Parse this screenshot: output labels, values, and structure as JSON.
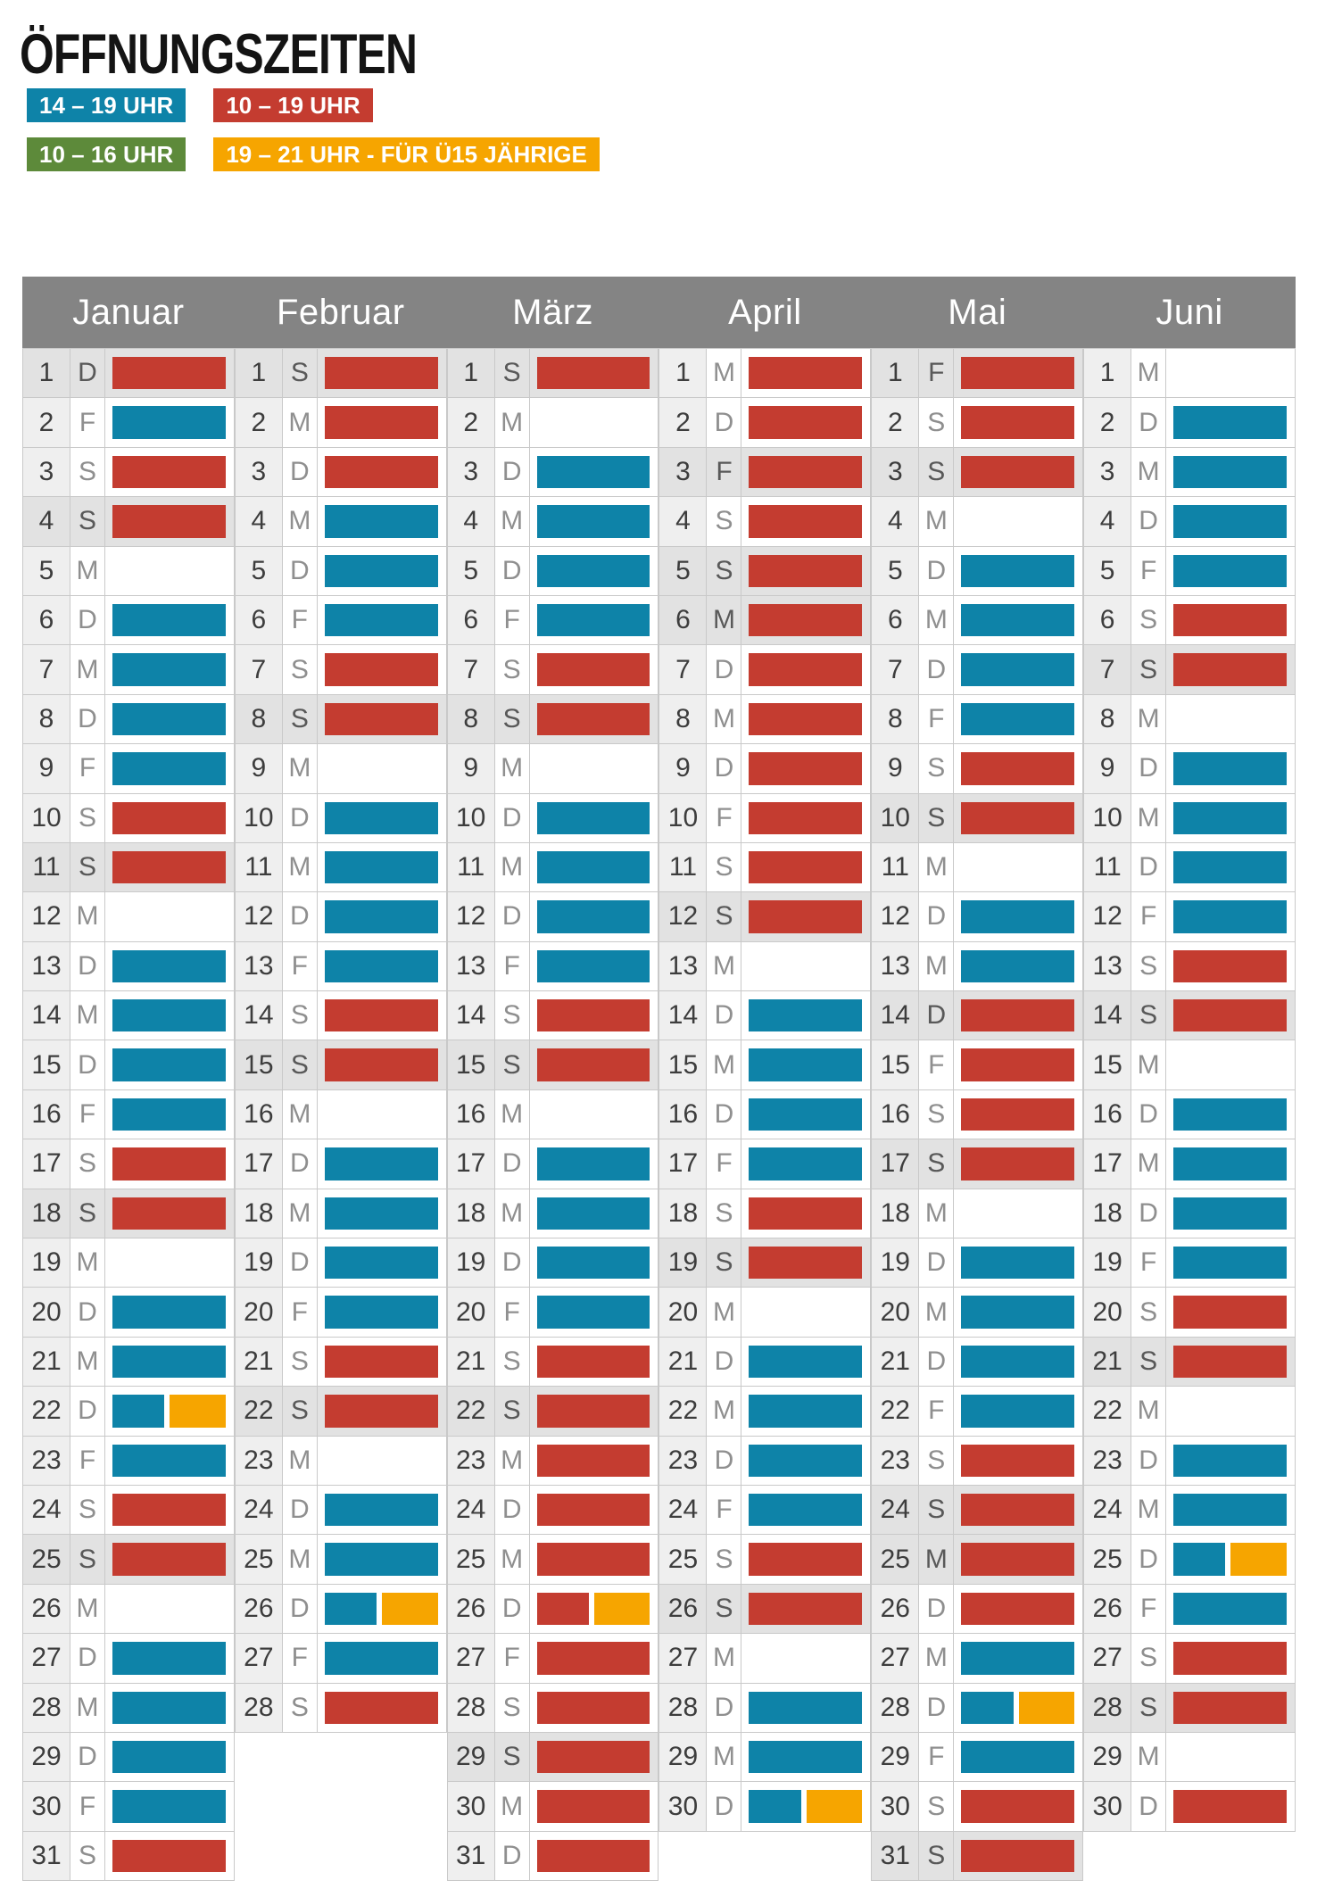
{
  "title": "ÖFFNUNGSZEITEN",
  "colors": {
    "blue": "#0e83a8",
    "red": "#c43c30",
    "green": "#5d8a3a",
    "orange": "#f6a500",
    "header": "#848484"
  },
  "legend": [
    {
      "k": "blue",
      "label": "14 – 19 UHR"
    },
    {
      "k": "red",
      "label": "10 – 19 UHR"
    },
    {
      "k": "green",
      "label": "10 – 16 UHR"
    },
    {
      "k": "orange",
      "label": "19 – 21 UHR - FÜR Ü15 JÄHRIGE"
    }
  ],
  "months": [
    {
      "name": "Januar",
      "key": "januar",
      "days": [
        {
          "n": 1,
          "w": "D",
          "b": "red",
          "s": 1
        },
        {
          "n": 2,
          "w": "F",
          "b": "blue",
          "s": 0
        },
        {
          "n": 3,
          "w": "S",
          "b": "red",
          "s": 0
        },
        {
          "n": 4,
          "w": "S",
          "b": "red",
          "s": 1
        },
        {
          "n": 5,
          "w": "M",
          "b": "",
          "s": 0
        },
        {
          "n": 6,
          "w": "D",
          "b": "blue",
          "s": 0
        },
        {
          "n": 7,
          "w": "M",
          "b": "blue",
          "s": 0
        },
        {
          "n": 8,
          "w": "D",
          "b": "blue",
          "s": 0
        },
        {
          "n": 9,
          "w": "F",
          "b": "blue",
          "s": 0
        },
        {
          "n": 10,
          "w": "S",
          "b": "red",
          "s": 0
        },
        {
          "n": 11,
          "w": "S",
          "b": "red",
          "s": 1
        },
        {
          "n": 12,
          "w": "M",
          "b": "",
          "s": 0
        },
        {
          "n": 13,
          "w": "D",
          "b": "blue",
          "s": 0
        },
        {
          "n": 14,
          "w": "M",
          "b": "blue",
          "s": 0
        },
        {
          "n": 15,
          "w": "D",
          "b": "blue",
          "s": 0
        },
        {
          "n": 16,
          "w": "F",
          "b": "blue",
          "s": 0
        },
        {
          "n": 17,
          "w": "S",
          "b": "red",
          "s": 0
        },
        {
          "n": 18,
          "w": "S",
          "b": "red",
          "s": 1
        },
        {
          "n": 19,
          "w": "M",
          "b": "",
          "s": 0
        },
        {
          "n": 20,
          "w": "D",
          "b": "blue",
          "s": 0
        },
        {
          "n": 21,
          "w": "M",
          "b": "blue",
          "s": 0
        },
        {
          "n": 22,
          "w": "D",
          "b": "blue orange",
          "s": 0
        },
        {
          "n": 23,
          "w": "F",
          "b": "blue",
          "s": 0
        },
        {
          "n": 24,
          "w": "S",
          "b": "red",
          "s": 0
        },
        {
          "n": 25,
          "w": "S",
          "b": "red",
          "s": 1
        },
        {
          "n": 26,
          "w": "M",
          "b": "",
          "s": 0
        },
        {
          "n": 27,
          "w": "D",
          "b": "blue",
          "s": 0
        },
        {
          "n": 28,
          "w": "M",
          "b": "blue",
          "s": 0
        },
        {
          "n": 29,
          "w": "D",
          "b": "blue",
          "s": 0
        },
        {
          "n": 30,
          "w": "F",
          "b": "blue",
          "s": 0
        },
        {
          "n": 31,
          "w": "S",
          "b": "red",
          "s": 0
        }
      ]
    },
    {
      "name": "Februar",
      "key": "februar",
      "days": [
        {
          "n": 1,
          "w": "S",
          "b": "red",
          "s": 1
        },
        {
          "n": 2,
          "w": "M",
          "b": "red",
          "s": 0
        },
        {
          "n": 3,
          "w": "D",
          "b": "red",
          "s": 0
        },
        {
          "n": 4,
          "w": "M",
          "b": "blue",
          "s": 0
        },
        {
          "n": 5,
          "w": "D",
          "b": "blue",
          "s": 0
        },
        {
          "n": 6,
          "w": "F",
          "b": "blue",
          "s": 0
        },
        {
          "n": 7,
          "w": "S",
          "b": "red",
          "s": 0
        },
        {
          "n": 8,
          "w": "S",
          "b": "red",
          "s": 1
        },
        {
          "n": 9,
          "w": "M",
          "b": "",
          "s": 0
        },
        {
          "n": 10,
          "w": "D",
          "b": "blue",
          "s": 0
        },
        {
          "n": 11,
          "w": "M",
          "b": "blue",
          "s": 0
        },
        {
          "n": 12,
          "w": "D",
          "b": "blue",
          "s": 0
        },
        {
          "n": 13,
          "w": "F",
          "b": "blue",
          "s": 0
        },
        {
          "n": 14,
          "w": "S",
          "b": "red",
          "s": 0
        },
        {
          "n": 15,
          "w": "S",
          "b": "red",
          "s": 1
        },
        {
          "n": 16,
          "w": "M",
          "b": "",
          "s": 0
        },
        {
          "n": 17,
          "w": "D",
          "b": "blue",
          "s": 0
        },
        {
          "n": 18,
          "w": "M",
          "b": "blue",
          "s": 0
        },
        {
          "n": 19,
          "w": "D",
          "b": "blue",
          "s": 0
        },
        {
          "n": 20,
          "w": "F",
          "b": "blue",
          "s": 0
        },
        {
          "n": 21,
          "w": "S",
          "b": "red",
          "s": 0
        },
        {
          "n": 22,
          "w": "S",
          "b": "red",
          "s": 1
        },
        {
          "n": 23,
          "w": "M",
          "b": "",
          "s": 0
        },
        {
          "n": 24,
          "w": "D",
          "b": "blue",
          "s": 0
        },
        {
          "n": 25,
          "w": "M",
          "b": "blue",
          "s": 0
        },
        {
          "n": 26,
          "w": "D",
          "b": "blue orange",
          "s": 0
        },
        {
          "n": 27,
          "w": "F",
          "b": "blue",
          "s": 0
        },
        {
          "n": 28,
          "w": "S",
          "b": "red",
          "s": 0
        }
      ]
    },
    {
      "name": "März",
      "key": "maerz",
      "days": [
        {
          "n": 1,
          "w": "S",
          "b": "red",
          "s": 1
        },
        {
          "n": 2,
          "w": "M",
          "b": "",
          "s": 0
        },
        {
          "n": 3,
          "w": "D",
          "b": "blue",
          "s": 0
        },
        {
          "n": 4,
          "w": "M",
          "b": "blue",
          "s": 0
        },
        {
          "n": 5,
          "w": "D",
          "b": "blue",
          "s": 0
        },
        {
          "n": 6,
          "w": "F",
          "b": "blue",
          "s": 0
        },
        {
          "n": 7,
          "w": "S",
          "b": "red",
          "s": 0
        },
        {
          "n": 8,
          "w": "S",
          "b": "red",
          "s": 1
        },
        {
          "n": 9,
          "w": "M",
          "b": "",
          "s": 0
        },
        {
          "n": 10,
          "w": "D",
          "b": "blue",
          "s": 0
        },
        {
          "n": 11,
          "w": "M",
          "b": "blue",
          "s": 0
        },
        {
          "n": 12,
          "w": "D",
          "b": "blue",
          "s": 0
        },
        {
          "n": 13,
          "w": "F",
          "b": "blue",
          "s": 0
        },
        {
          "n": 14,
          "w": "S",
          "b": "red",
          "s": 0
        },
        {
          "n": 15,
          "w": "S",
          "b": "red",
          "s": 1
        },
        {
          "n": 16,
          "w": "M",
          "b": "",
          "s": 0
        },
        {
          "n": 17,
          "w": "D",
          "b": "blue",
          "s": 0
        },
        {
          "n": 18,
          "w": "M",
          "b": "blue",
          "s": 0
        },
        {
          "n": 19,
          "w": "D",
          "b": "blue",
          "s": 0
        },
        {
          "n": 20,
          "w": "F",
          "b": "blue",
          "s": 0
        },
        {
          "n": 21,
          "w": "S",
          "b": "red",
          "s": 0
        },
        {
          "n": 22,
          "w": "S",
          "b": "red",
          "s": 1
        },
        {
          "n": 23,
          "w": "M",
          "b": "red",
          "s": 0
        },
        {
          "n": 24,
          "w": "D",
          "b": "red",
          "s": 0
        },
        {
          "n": 25,
          "w": "M",
          "b": "red",
          "s": 0
        },
        {
          "n": 26,
          "w": "D",
          "b": "red orange",
          "s": 0
        },
        {
          "n": 27,
          "w": "F",
          "b": "red",
          "s": 0
        },
        {
          "n": 28,
          "w": "S",
          "b": "red",
          "s": 0
        },
        {
          "n": 29,
          "w": "S",
          "b": "red",
          "s": 1
        },
        {
          "n": 30,
          "w": "M",
          "b": "red",
          "s": 0
        },
        {
          "n": 31,
          "w": "D",
          "b": "red",
          "s": 0
        }
      ]
    },
    {
      "name": "April",
      "key": "april",
      "days": [
        {
          "n": 1,
          "w": "M",
          "b": "red",
          "s": 0
        },
        {
          "n": 2,
          "w": "D",
          "b": "red",
          "s": 0
        },
        {
          "n": 3,
          "w": "F",
          "b": "red",
          "s": 1
        },
        {
          "n": 4,
          "w": "S",
          "b": "red",
          "s": 0
        },
        {
          "n": 5,
          "w": "S",
          "b": "red",
          "s": 1
        },
        {
          "n": 6,
          "w": "M",
          "b": "red",
          "s": 1
        },
        {
          "n": 7,
          "w": "D",
          "b": "red",
          "s": 0
        },
        {
          "n": 8,
          "w": "M",
          "b": "red",
          "s": 0
        },
        {
          "n": 9,
          "w": "D",
          "b": "red",
          "s": 0
        },
        {
          "n": 10,
          "w": "F",
          "b": "red",
          "s": 0
        },
        {
          "n": 11,
          "w": "S",
          "b": "red",
          "s": 0
        },
        {
          "n": 12,
          "w": "S",
          "b": "red",
          "s": 1
        },
        {
          "n": 13,
          "w": "M",
          "b": "",
          "s": 0
        },
        {
          "n": 14,
          "w": "D",
          "b": "blue",
          "s": 0
        },
        {
          "n": 15,
          "w": "M",
          "b": "blue",
          "s": 0
        },
        {
          "n": 16,
          "w": "D",
          "b": "blue",
          "s": 0
        },
        {
          "n": 17,
          "w": "F",
          "b": "blue",
          "s": 0
        },
        {
          "n": 18,
          "w": "S",
          "b": "red",
          "s": 0
        },
        {
          "n": 19,
          "w": "S",
          "b": "red",
          "s": 1
        },
        {
          "n": 20,
          "w": "M",
          "b": "",
          "s": 0
        },
        {
          "n": 21,
          "w": "D",
          "b": "blue",
          "s": 0
        },
        {
          "n": 22,
          "w": "M",
          "b": "blue",
          "s": 0
        },
        {
          "n": 23,
          "w": "D",
          "b": "blue",
          "s": 0
        },
        {
          "n": 24,
          "w": "F",
          "b": "blue",
          "s": 0
        },
        {
          "n": 25,
          "w": "S",
          "b": "red",
          "s": 0
        },
        {
          "n": 26,
          "w": "S",
          "b": "red",
          "s": 1
        },
        {
          "n": 27,
          "w": "M",
          "b": "",
          "s": 0
        },
        {
          "n": 28,
          "w": "D",
          "b": "blue",
          "s": 0
        },
        {
          "n": 29,
          "w": "M",
          "b": "blue",
          "s": 0
        },
        {
          "n": 30,
          "w": "D",
          "b": "blue orange",
          "s": 0
        }
      ]
    },
    {
      "name": "Mai",
      "key": "mai",
      "days": [
        {
          "n": 1,
          "w": "F",
          "b": "red",
          "s": 1
        },
        {
          "n": 2,
          "w": "S",
          "b": "red",
          "s": 0
        },
        {
          "n": 3,
          "w": "S",
          "b": "red",
          "s": 1
        },
        {
          "n": 4,
          "w": "M",
          "b": "",
          "s": 0
        },
        {
          "n": 5,
          "w": "D",
          "b": "blue",
          "s": 0
        },
        {
          "n": 6,
          "w": "M",
          "b": "blue",
          "s": 0
        },
        {
          "n": 7,
          "w": "D",
          "b": "blue",
          "s": 0
        },
        {
          "n": 8,
          "w": "F",
          "b": "blue",
          "s": 0
        },
        {
          "n": 9,
          "w": "S",
          "b": "red",
          "s": 0
        },
        {
          "n": 10,
          "w": "S",
          "b": "red",
          "s": 1
        },
        {
          "n": 11,
          "w": "M",
          "b": "",
          "s": 0
        },
        {
          "n": 12,
          "w": "D",
          "b": "blue",
          "s": 0
        },
        {
          "n": 13,
          "w": "M",
          "b": "blue",
          "s": 0
        },
        {
          "n": 14,
          "w": "D",
          "b": "red",
          "s": 1
        },
        {
          "n": 15,
          "w": "F",
          "b": "red",
          "s": 0
        },
        {
          "n": 16,
          "w": "S",
          "b": "red",
          "s": 0
        },
        {
          "n": 17,
          "w": "S",
          "b": "red",
          "s": 1
        },
        {
          "n": 18,
          "w": "M",
          "b": "",
          "s": 0
        },
        {
          "n": 19,
          "w": "D",
          "b": "blue",
          "s": 0
        },
        {
          "n": 20,
          "w": "M",
          "b": "blue",
          "s": 0
        },
        {
          "n": 21,
          "w": "D",
          "b": "blue",
          "s": 0
        },
        {
          "n": 22,
          "w": "F",
          "b": "blue",
          "s": 0
        },
        {
          "n": 23,
          "w": "S",
          "b": "red",
          "s": 0
        },
        {
          "n": 24,
          "w": "S",
          "b": "red",
          "s": 1
        },
        {
          "n": 25,
          "w": "M",
          "b": "red",
          "s": 1
        },
        {
          "n": 26,
          "w": "D",
          "b": "red",
          "s": 0
        },
        {
          "n": 27,
          "w": "M",
          "b": "blue",
          "s": 0
        },
        {
          "n": 28,
          "w": "D",
          "b": "blue orange",
          "s": 0
        },
        {
          "n": 29,
          "w": "F",
          "b": "blue",
          "s": 0
        },
        {
          "n": 30,
          "w": "S",
          "b": "red",
          "s": 0
        },
        {
          "n": 31,
          "w": "S",
          "b": "red",
          "s": 1
        }
      ]
    },
    {
      "name": "Juni",
      "key": "juni",
      "days": [
        {
          "n": 1,
          "w": "M",
          "b": "",
          "s": 0
        },
        {
          "n": 2,
          "w": "D",
          "b": "blue",
          "s": 0
        },
        {
          "n": 3,
          "w": "M",
          "b": "blue",
          "s": 0
        },
        {
          "n": 4,
          "w": "D",
          "b": "blue",
          "s": 0
        },
        {
          "n": 5,
          "w": "F",
          "b": "blue",
          "s": 0
        },
        {
          "n": 6,
          "w": "S",
          "b": "red",
          "s": 0
        },
        {
          "n": 7,
          "w": "S",
          "b": "red",
          "s": 1
        },
        {
          "n": 8,
          "w": "M",
          "b": "",
          "s": 0
        },
        {
          "n": 9,
          "w": "D",
          "b": "blue",
          "s": 0
        },
        {
          "n": 10,
          "w": "M",
          "b": "blue",
          "s": 0
        },
        {
          "n": 11,
          "w": "D",
          "b": "blue",
          "s": 0
        },
        {
          "n": 12,
          "w": "F",
          "b": "blue",
          "s": 0
        },
        {
          "n": 13,
          "w": "S",
          "b": "red",
          "s": 0
        },
        {
          "n": 14,
          "w": "S",
          "b": "red",
          "s": 1
        },
        {
          "n": 15,
          "w": "M",
          "b": "",
          "s": 0
        },
        {
          "n": 16,
          "w": "D",
          "b": "blue",
          "s": 0
        },
        {
          "n": 17,
          "w": "M",
          "b": "blue",
          "s": 0
        },
        {
          "n": 18,
          "w": "D",
          "b": "blue",
          "s": 0
        },
        {
          "n": 19,
          "w": "F",
          "b": "blue",
          "s": 0
        },
        {
          "n": 20,
          "w": "S",
          "b": "red",
          "s": 0
        },
        {
          "n": 21,
          "w": "S",
          "b": "red",
          "s": 1
        },
        {
          "n": 22,
          "w": "M",
          "b": "",
          "s": 0
        },
        {
          "n": 23,
          "w": "D",
          "b": "blue",
          "s": 0
        },
        {
          "n": 24,
          "w": "M",
          "b": "blue",
          "s": 0
        },
        {
          "n": 25,
          "w": "D",
          "b": "blue orange",
          "s": 0
        },
        {
          "n": 26,
          "w": "F",
          "b": "blue",
          "s": 0
        },
        {
          "n": 27,
          "w": "S",
          "b": "red",
          "s": 0
        },
        {
          "n": 28,
          "w": "S",
          "b": "red",
          "s": 1
        },
        {
          "n": 29,
          "w": "M",
          "b": "",
          "s": 0
        },
        {
          "n": 30,
          "w": "D",
          "b": "red",
          "s": 0
        }
      ]
    }
  ]
}
